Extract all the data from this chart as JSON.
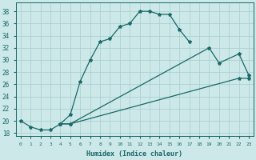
{
  "xlabel": "Humidex (Indice chaleur)",
  "bg_color": "#cce8e8",
  "grid_color": "#a8cccc",
  "line_color": "#1a6868",
  "xlim": [
    -0.5,
    23.5
  ],
  "ylim": [
    17.5,
    39.5
  ],
  "xticks": [
    0,
    1,
    2,
    3,
    4,
    5,
    6,
    7,
    8,
    9,
    10,
    11,
    12,
    13,
    14,
    15,
    16,
    17,
    18,
    19,
    20,
    21,
    22,
    23
  ],
  "yticks": [
    18,
    20,
    22,
    24,
    26,
    28,
    30,
    32,
    34,
    36,
    38
  ],
  "line1": {
    "x": [
      0,
      1,
      2,
      3,
      4,
      5,
      6,
      7,
      8,
      9,
      10,
      11,
      12,
      13,
      14,
      15,
      16,
      17
    ],
    "y": [
      20,
      19,
      18.5,
      18.5,
      19.5,
      21,
      26.5,
      30,
      33,
      33.5,
      35.5,
      36,
      38,
      38,
      37.5,
      37.5,
      35,
      33
    ]
  },
  "line2": {
    "x": [
      4,
      5,
      19,
      20,
      22,
      23
    ],
    "y": [
      19.5,
      19.5,
      32,
      29.5,
      31,
      27.5
    ]
  },
  "line3": {
    "x": [
      4,
      5,
      22,
      23
    ],
    "y": [
      19.5,
      19.5,
      27,
      27
    ]
  }
}
